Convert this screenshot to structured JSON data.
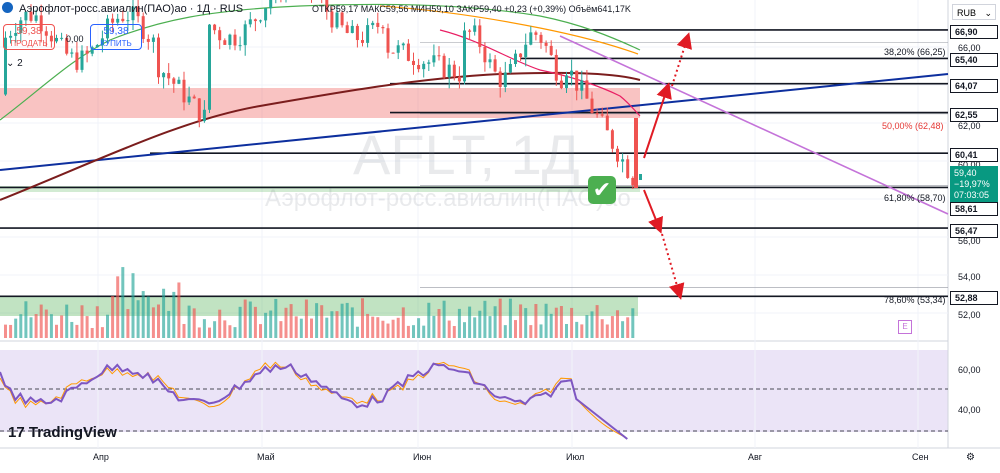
{
  "header": {
    "symbol": "Аэрофлот-росс.авиалин(ПАО)ао · 1Д · RUS",
    "ohlc_label": "ОТКР59,17 МАКС59,56 МИН59,10 ЗАКР59,40 +0,23 (+0,39%) Объём641,17K",
    "currency": "RUB"
  },
  "trade": {
    "sell_price": "59,38",
    "sell_label": "ПРОДАТЬ",
    "spread": "0,00",
    "buy_price": "59,38",
    "buy_label": "КУПИТЬ",
    "indicator_count": "2"
  },
  "watermark": {
    "ticker": "AFLT, 1Д",
    "name": "Аэрофлот-росс.авиалин(ПАО)ао"
  },
  "price_axis": [
    "66,00",
    "62,00",
    "60,00",
    "56,00",
    "54,00",
    "52,00"
  ],
  "level_tags": [
    "66,90",
    "65,40",
    "64,07",
    "62,55",
    "60,41",
    "58,61",
    "56,47",
    "52,88"
  ],
  "current_price": {
    "price": "59,40",
    "change": "−19,97%",
    "timer": "07:03:05"
  },
  "fib_labels": [
    "38,20% (66,25)",
    "50,00% (62,48)",
    "61,80% (58,70)",
    "78,60% (53,34)"
  ],
  "rsi_axis": [
    "60,00",
    "40,00"
  ],
  "time_axis": [
    "Апр",
    "Май",
    "Июн",
    "Июл",
    "Авг",
    "Сен"
  ],
  "branding": "TradingView",
  "colors": {
    "up": "#26a69a",
    "down": "#ef5350",
    "blue_trend": "#0d2f9e",
    "purple_trend": "#c473d9",
    "rsi": "#7e57c2",
    "arrows": "#e01b24",
    "sma": "#7b1d1d"
  }
}
